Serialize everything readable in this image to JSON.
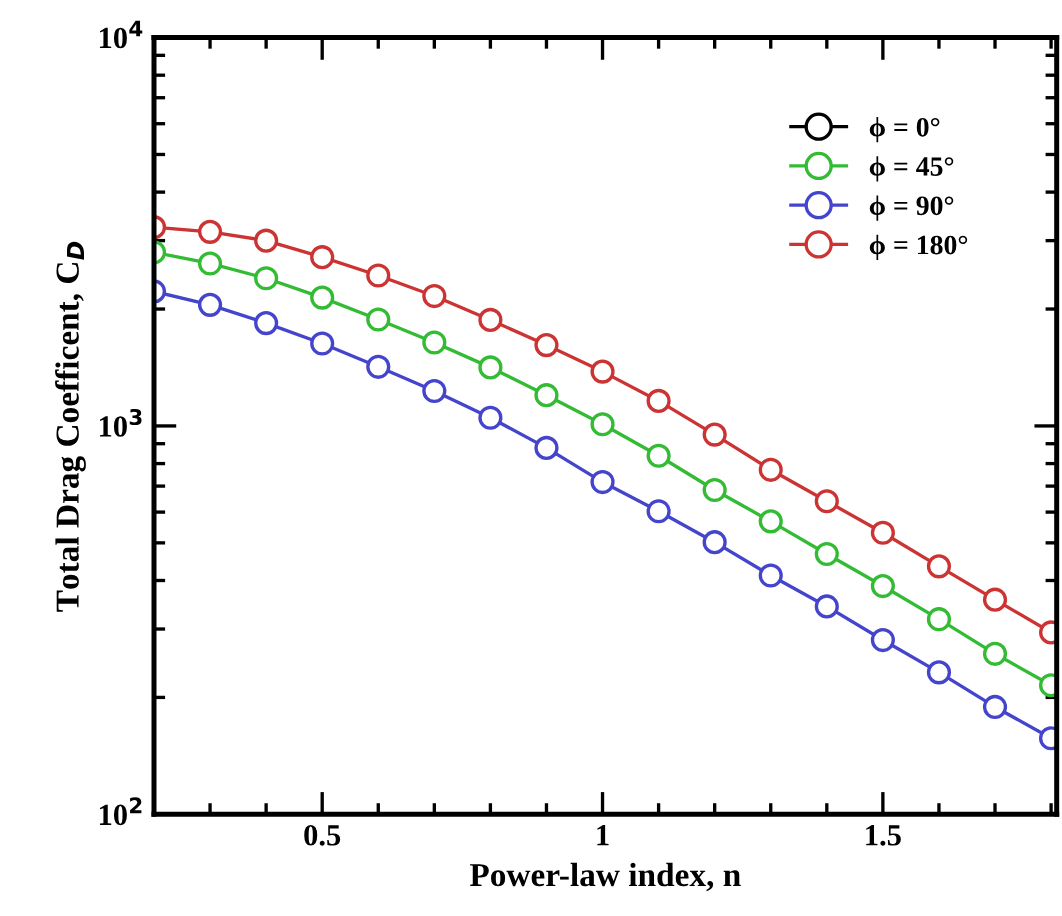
{
  "chart_data": {
    "type": "line",
    "xlabel": "Power-law index, n",
    "ylabel": "Total Drag Coefficent, C$_{D}$",
    "x": [
      0.2,
      0.3,
      0.4,
      0.5,
      0.6,
      0.7,
      0.8,
      0.9,
      1.0,
      1.1,
      1.2,
      1.3,
      1.4,
      1.5,
      1.6,
      1.7,
      1.8
    ],
    "series": [
      {
        "name": "ϕ = 0°",
        "color": "#000000",
        "values": [
          null,
          null,
          null,
          null,
          null,
          null,
          null,
          null,
          null,
          null,
          null,
          null,
          null,
          null,
          null,
          null,
          null
        ]
      },
      {
        "name": "ϕ = 45°",
        "color": "#33bb33",
        "values": [
          2800,
          2620,
          2400,
          2140,
          1880,
          1640,
          1415,
          1200,
          1010,
          838,
          684,
          568,
          468,
          387,
          318,
          259,
          215
        ]
      },
      {
        "name": "ϕ = 90°",
        "color": "#4444cc",
        "values": [
          2220,
          2050,
          1840,
          1630,
          1420,
          1230,
          1050,
          878,
          717,
          603,
          502,
          412,
          343,
          281,
          232,
          189,
          157
        ]
      },
      {
        "name": "ϕ = 180°",
        "color": "#cc3333",
        "values": [
          3250,
          3160,
          3000,
          2720,
          2440,
          2160,
          1875,
          1615,
          1380,
          1160,
          950,
          771,
          640,
          531,
          435,
          357,
          294
        ]
      }
    ],
    "log": "y",
    "xlim": [
      0.2,
      1.81
    ],
    "ylim": [
      100,
      10000
    ],
    "xticks": [
      0.5,
      1,
      1.5
    ],
    "yticks": [
      {
        "value": 100,
        "label": "10$^{2}$"
      },
      {
        "value": 1000,
        "label": "10$^{3}$"
      },
      {
        "value": 10000,
        "label": "10$^{4}$"
      }
    ],
    "legend": "top right",
    "marker": "circle",
    "line_style": "solid",
    "grid": false
  }
}
